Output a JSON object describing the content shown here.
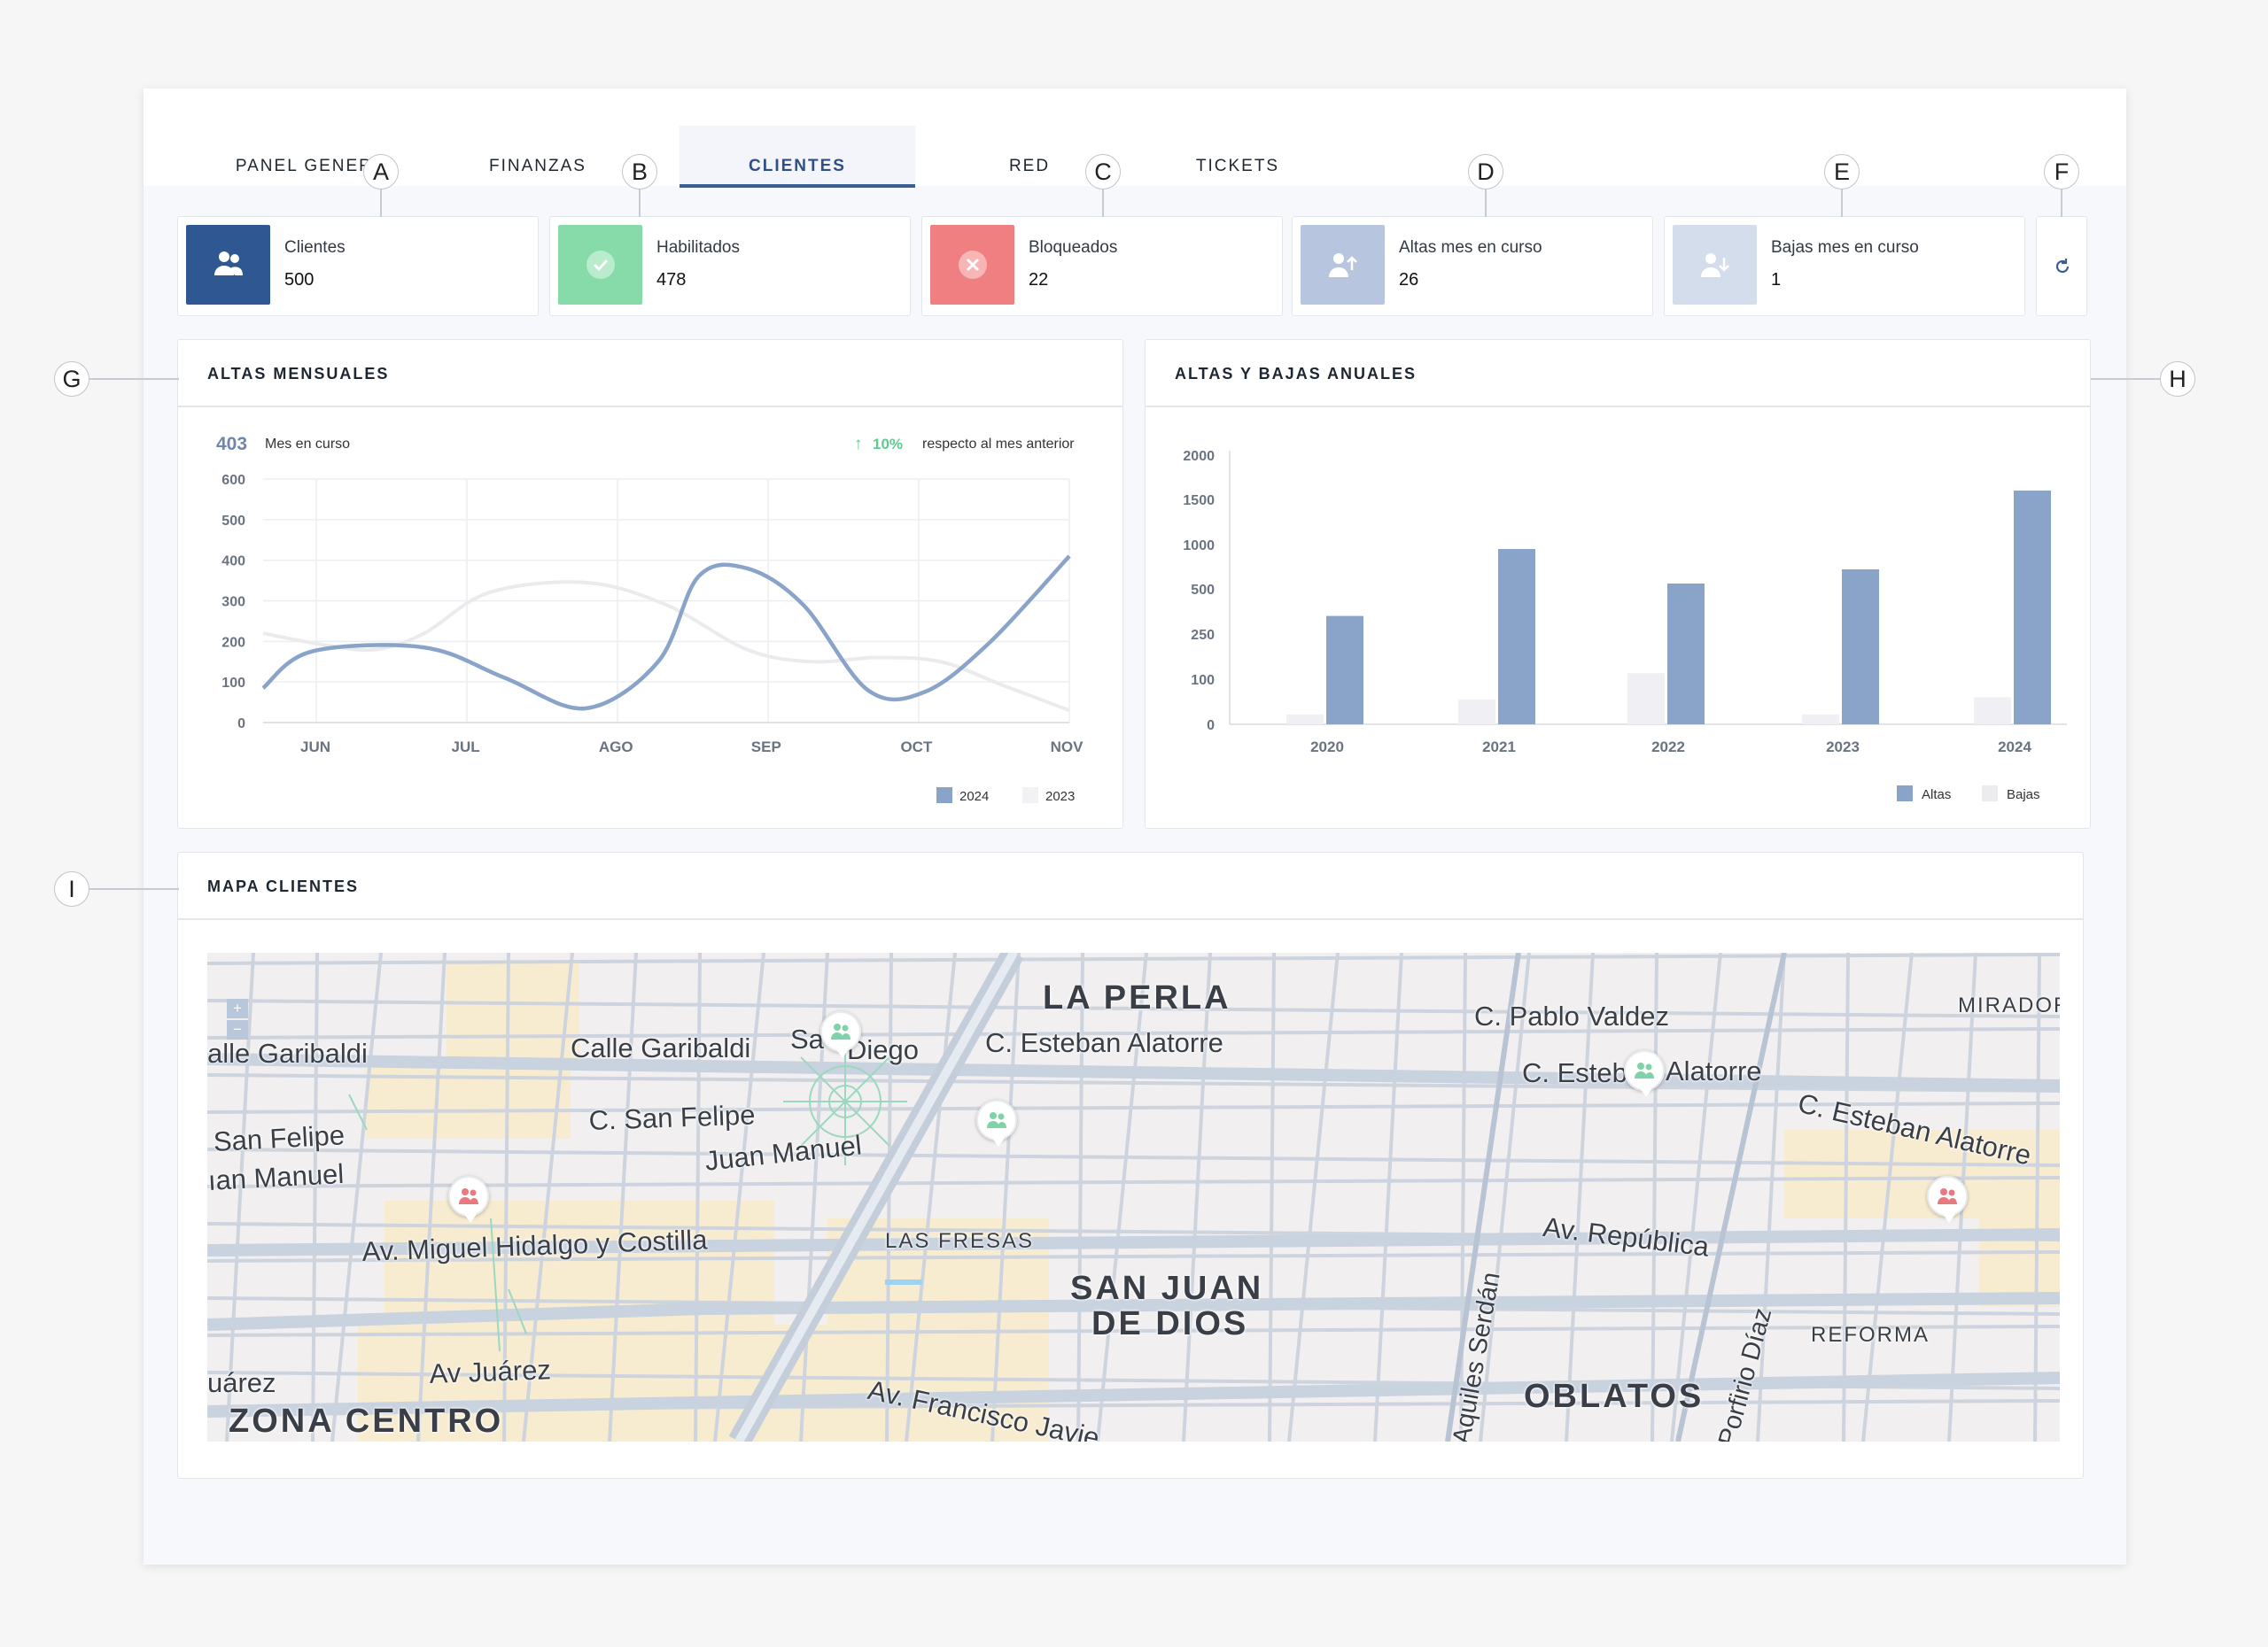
{
  "tabs": [
    {
      "label": "PANEL GENERAL",
      "active": false
    },
    {
      "label": "FINANZAS",
      "active": false
    },
    {
      "label": "CLIENTES",
      "active": true
    },
    {
      "label": "RED",
      "active": false
    },
    {
      "label": "TICKETS",
      "active": false
    }
  ],
  "callouts": [
    "A",
    "B",
    "C",
    "D",
    "E",
    "F",
    "G",
    "H",
    "I"
  ],
  "stats": [
    {
      "label": "Clientes",
      "value": "500",
      "color": "#2f5791",
      "icon": "users-icon"
    },
    {
      "label": "Habilitados",
      "value": "478",
      "color": "#86dba9",
      "icon": "check-circle-icon"
    },
    {
      "label": "Bloqueados",
      "value": "22",
      "color": "#ef7f80",
      "icon": "x-circle-icon"
    },
    {
      "label": "Altas mes en curso",
      "value": "26",
      "color": "#b7c6de",
      "icon": "user-up-icon"
    },
    {
      "label": "Bajas mes en curso",
      "value": "1",
      "color": "#d4ddeb",
      "icon": "user-down-icon"
    }
  ],
  "refresh_icon": "refresh-icon",
  "altas_mensuales": {
    "title": "ALTAS MENSUALES",
    "current_value": "403",
    "current_label": "Mes en curso",
    "change": "10%",
    "change_label": "respecto al mes anterior",
    "change_color": "#5ccb8f"
  },
  "altas_bajas": {
    "title": "ALTAS Y BAJAS ANUALES"
  },
  "chart_data": [
    {
      "type": "line",
      "x": [
        "JUN",
        "JUL",
        "AGO",
        "SEP",
        "OCT",
        "NOV"
      ],
      "ylim": [
        0,
        600
      ],
      "yticks": [
        0,
        100,
        200,
        300,
        400,
        500,
        600
      ],
      "grid": true,
      "legend_position": "bottom-right",
      "series": [
        {
          "name": "2024",
          "color": "#8aa4c9",
          "points": [
            [
              0,
              85
            ],
            [
              0.3,
              175
            ],
            [
              1,
              185
            ],
            [
              1.5,
              110
            ],
            [
              2,
              35
            ],
            [
              2.45,
              150
            ],
            [
              2.7,
              360
            ],
            [
              3,
              380
            ],
            [
              3.35,
              290
            ],
            [
              3.75,
              80
            ],
            [
              4.1,
              75
            ],
            [
              4.5,
              195
            ],
            [
              5,
              410
            ]
          ]
        },
        {
          "name": "2023",
          "color": "#f0f0f2",
          "points": [
            [
              0,
              220
            ],
            [
              0.4,
              190
            ],
            [
              0.7,
              180
            ],
            [
              1,
              220
            ],
            [
              1.4,
              320
            ],
            [
              2,
              345
            ],
            [
              2.5,
              290
            ],
            [
              3,
              180
            ],
            [
              3.4,
              150
            ],
            [
              3.8,
              160
            ],
            [
              4.2,
              150
            ],
            [
              4.6,
              90
            ],
            [
              5,
              30
            ]
          ]
        }
      ]
    },
    {
      "type": "bar",
      "categories": [
        "2020",
        "2021",
        "2022",
        "2023",
        "2024"
      ],
      "yticks": [
        "0",
        "100",
        "250",
        "500",
        "1000",
        "1500",
        "2000"
      ],
      "legend_position": "bottom-right",
      "series": [
        {
          "name": "Altas",
          "color": "#8aa4c9",
          "values": [
            350,
            950,
            560,
            720,
            1600
          ]
        },
        {
          "name": "Bajas",
          "color": "#f0f0f4",
          "values": [
            22,
            55,
            120,
            22,
            60
          ]
        }
      ]
    }
  ],
  "mapa": {
    "title": "MAPA CLIENTES",
    "zoom_in": "+",
    "zoom_out": "−",
    "labels": [
      {
        "text": "LA PERLA",
        "kind": "district"
      },
      {
        "text": "SAN JUAN",
        "kind": "district"
      },
      {
        "text": "DE DIOS",
        "kind": "district"
      },
      {
        "text": "OBLATOS",
        "kind": "district"
      },
      {
        "text": "ZONA CENTRO",
        "kind": "district"
      },
      {
        "text": "LAS FRESAS",
        "kind": "neighborhood"
      },
      {
        "text": "REFORMA",
        "kind": "neighborhood"
      },
      {
        "text": "MIRADOR",
        "kind": "neighborhood"
      },
      {
        "text": "Calle Garibaldi",
        "kind": "street"
      },
      {
        "text": "alle Garibaldi",
        "kind": "street"
      },
      {
        "text": "C. Esteban Alatorre",
        "kind": "street"
      },
      {
        "text": "C. Pablo Valdez",
        "kind": "street"
      },
      {
        "text": "C. Esteb",
        "kind": "street"
      },
      {
        "text": "Alatorre",
        "kind": "street"
      },
      {
        "text": "C. Esteban Alatorre",
        "kind": "street"
      },
      {
        "text": "C. San Felipe",
        "kind": "street"
      },
      {
        "text": "San Felipe",
        "kind": "street"
      },
      {
        "text": "Juan Manuel",
        "kind": "street"
      },
      {
        "text": "ıan Manuel",
        "kind": "street"
      },
      {
        "text": "Av. Miguel Hidalgo y Costilla",
        "kind": "street"
      },
      {
        "text": "Av. República",
        "kind": "street"
      },
      {
        "text": "Av Juárez",
        "kind": "street"
      },
      {
        "text": "uárez",
        "kind": "street"
      },
      {
        "text": "Av. Francisco Javie",
        "kind": "street"
      },
      {
        "text": "Aquiles Serdán",
        "kind": "street"
      },
      {
        "text": "Porfirio Díaz",
        "kind": "street"
      },
      {
        "text": "Sa",
        "kind": "street"
      },
      {
        "text": "Diego",
        "kind": "street"
      }
    ],
    "pins": [
      {
        "status": "active",
        "color": "#7fd3a8"
      },
      {
        "status": "active",
        "color": "#7fd3a8"
      },
      {
        "status": "active",
        "color": "#7fd3a8"
      },
      {
        "status": "blocked",
        "color": "#e8797f"
      },
      {
        "status": "blocked",
        "color": "#e8797f"
      }
    ]
  }
}
